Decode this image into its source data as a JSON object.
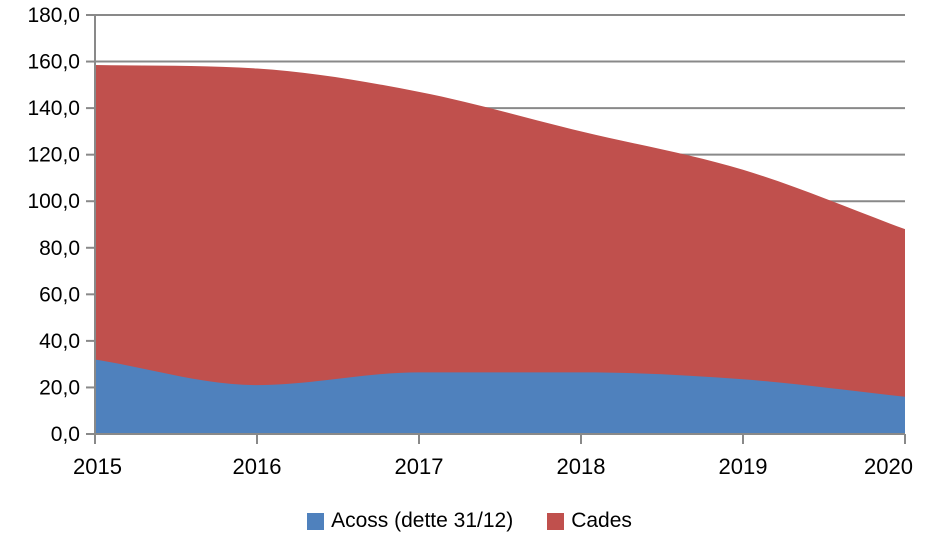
{
  "chart_data": {
    "type": "area",
    "stacked": true,
    "smooth": true,
    "title": "",
    "xlabel": "",
    "ylabel": "",
    "categories": [
      "2015",
      "2016",
      "2017",
      "2018",
      "2019",
      "2020"
    ],
    "series": [
      {
        "name": "Acoss (dette 31/12)",
        "color": "#4F81BD",
        "values": [
          32.0,
          21.0,
          26.5,
          26.5,
          23.5,
          16.0
        ]
      },
      {
        "name": "Cades",
        "color": "#C0504D",
        "values": [
          126.5,
          136.0,
          120.5,
          103.5,
          90.0,
          72.0
        ]
      }
    ],
    "stacked_totals": [
      158.5,
      157.0,
      147.0,
      130.0,
      113.5,
      88.0
    ],
    "ylim": [
      0,
      180
    ],
    "y_tick_step": 20,
    "y_tick_labels": [
      "0,0",
      "20,0",
      "40,0",
      "60,0",
      "80,0",
      "100,0",
      "120,0",
      "140,0",
      "160,0",
      "180,0"
    ],
    "grid": "horizontal-only",
    "legend_position": "bottom-center",
    "colors": {
      "axis_and_grid": "#898989",
      "tick_text": "#000000",
      "background": "#ffffff"
    }
  }
}
